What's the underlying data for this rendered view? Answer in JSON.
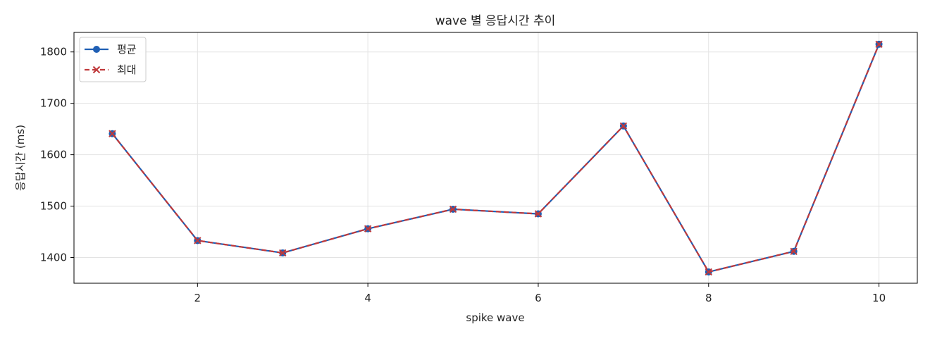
{
  "chart_data": {
    "type": "line",
    "title": "wave 별 응답시간 추이",
    "xlabel": "spike wave",
    "ylabel": "응답시간 (ms)",
    "x": [
      1,
      2,
      3,
      4,
      5,
      6,
      7,
      8,
      9,
      10
    ],
    "xlim": [
      0.55,
      10.45
    ],
    "ylim": [
      1350,
      1838
    ],
    "xticks": [
      2,
      4,
      6,
      8,
      10
    ],
    "yticks": [
      1400,
      1500,
      1600,
      1700,
      1800
    ],
    "grid": true,
    "legend_position": "top-left",
    "series": [
      {
        "name": "평균",
        "values": [
          1641,
          1433,
          1409,
          1456,
          1494,
          1485,
          1656,
          1372,
          1412,
          1815
        ],
        "color": "#1f5fb4",
        "line_style": "solid",
        "marker": "circle"
      },
      {
        "name": "최대",
        "values": [
          1641,
          1433,
          1409,
          1456,
          1494,
          1485,
          1656,
          1372,
          1412,
          1815
        ],
        "color": "#c0393b",
        "line_style": "dashed",
        "marker": "x"
      }
    ]
  }
}
